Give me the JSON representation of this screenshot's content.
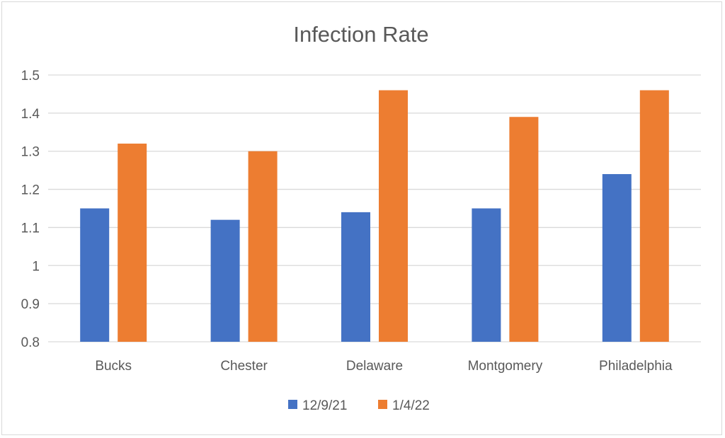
{
  "chart_data": {
    "type": "bar",
    "title": "Infection Rate",
    "xlabel": "",
    "ylabel": "",
    "categories": [
      "Bucks",
      "Chester",
      "Delaware",
      "Montgomery",
      "Philadelphia"
    ],
    "series": [
      {
        "name": "12/9/21",
        "values": [
          1.15,
          1.12,
          1.14,
          1.15,
          1.24
        ],
        "color": "#4472c4"
      },
      {
        "name": "1/4/22",
        "values": [
          1.32,
          1.3,
          1.46,
          1.39,
          1.46
        ],
        "color": "#ed7d31"
      }
    ],
    "ylim": [
      0.8,
      1.5
    ],
    "y_ticks": [
      "0.8",
      "0.9",
      "1",
      "1.1",
      "1.2",
      "1.3",
      "1.4",
      "1.5"
    ],
    "grid": true,
    "legend_position": "bottom",
    "gridline_color": "#d9d9d9"
  }
}
